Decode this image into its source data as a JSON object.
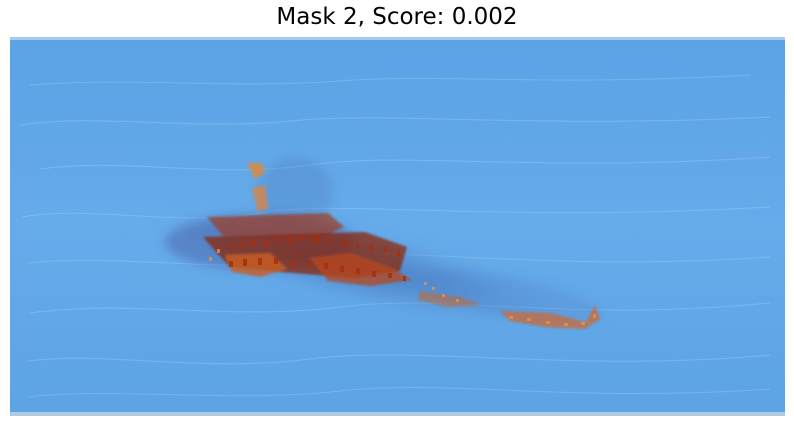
{
  "figure": {
    "title": "Mask 2, Score: 0.002"
  },
  "image": {
    "description_icon": "segmentation-mask-overlay",
    "colors": {
      "water_blue": "#64a8e6",
      "shadow_blue": "#4f86c8",
      "mask_dark_red": "#8f2608",
      "mask_orange": "#e0873d"
    }
  }
}
